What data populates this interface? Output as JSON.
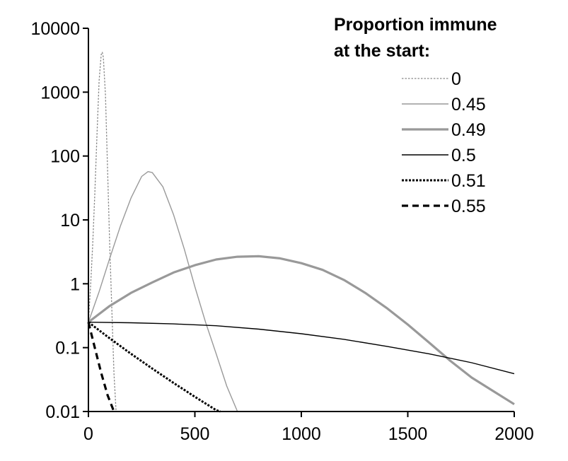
{
  "chart_data": {
    "type": "line",
    "title": "",
    "xlabel": "",
    "ylabel": "",
    "xlim": [
      0,
      2000
    ],
    "ylim": [
      0.01,
      10000
    ],
    "y_scale": "log",
    "x_ticks": [
      0,
      500,
      1000,
      1500,
      2000
    ],
    "x_tick_labels": [
      "0",
      "500",
      "1000",
      "1500",
      "2000"
    ],
    "y_ticks": [
      0.01,
      0.1,
      1,
      10,
      100,
      1000,
      10000
    ],
    "y_tick_labels": [
      "0.01",
      "0.1",
      "1",
      "10",
      "100",
      "1000",
      "10000"
    ],
    "grid": false,
    "legend": {
      "title_lines": [
        "Proportion immune",
        "at the start:"
      ],
      "placement": "top-right"
    },
    "series": [
      {
        "name": "0",
        "color": "#888888",
        "style": "thin-dotted",
        "x": [
          0,
          10,
          20,
          30,
          40,
          50,
          60,
          65,
          70,
          80,
          90,
          100,
          110,
          120,
          130
        ],
        "y": [
          0.25,
          0.9,
          4,
          25,
          200,
          1500,
          3900,
          4200,
          3500,
          900,
          60,
          4,
          0.4,
          0.04,
          0.01
        ]
      },
      {
        "name": "0.45",
        "color": "#999999",
        "style": "thin-solid",
        "x": [
          0,
          50,
          100,
          150,
          200,
          250,
          280,
          300,
          350,
          400,
          450,
          500,
          550,
          600,
          650,
          700
        ],
        "y": [
          0.25,
          0.75,
          2.5,
          8,
          22,
          48,
          57,
          55,
          33,
          12,
          3.5,
          0.9,
          0.25,
          0.08,
          0.025,
          0.01
        ]
      },
      {
        "name": "0.49",
        "color": "#999999",
        "style": "thick-solid",
        "x": [
          0,
          100,
          200,
          300,
          400,
          500,
          600,
          700,
          800,
          900,
          1000,
          1100,
          1200,
          1300,
          1400,
          1500,
          1600,
          1700,
          1800,
          1900,
          2000
        ],
        "y": [
          0.25,
          0.45,
          0.72,
          1.05,
          1.5,
          1.95,
          2.4,
          2.65,
          2.7,
          2.5,
          2.1,
          1.65,
          1.15,
          0.72,
          0.42,
          0.23,
          0.12,
          0.062,
          0.034,
          0.021,
          0.013
        ]
      },
      {
        "name": "0.5",
        "color": "#000000",
        "style": "thin-solid",
        "x": [
          0,
          200,
          400,
          600,
          800,
          1000,
          1200,
          1400,
          1600,
          1800,
          2000
        ],
        "y": [
          0.25,
          0.245,
          0.235,
          0.22,
          0.195,
          0.165,
          0.135,
          0.105,
          0.08,
          0.058,
          0.039
        ]
      },
      {
        "name": "0.51",
        "color": "#000000",
        "style": "thick-dotted",
        "x": [
          0,
          100,
          200,
          300,
          400,
          500,
          600,
          620
        ],
        "y": [
          0.25,
          0.14,
          0.08,
          0.047,
          0.028,
          0.017,
          0.0105,
          0.01
        ]
      },
      {
        "name": "0.55",
        "color": "#000000",
        "style": "thick-dashed",
        "x": [
          0,
          30,
          60,
          90,
          120
        ],
        "y": [
          0.25,
          0.1,
          0.04,
          0.018,
          0.01
        ]
      }
    ]
  }
}
